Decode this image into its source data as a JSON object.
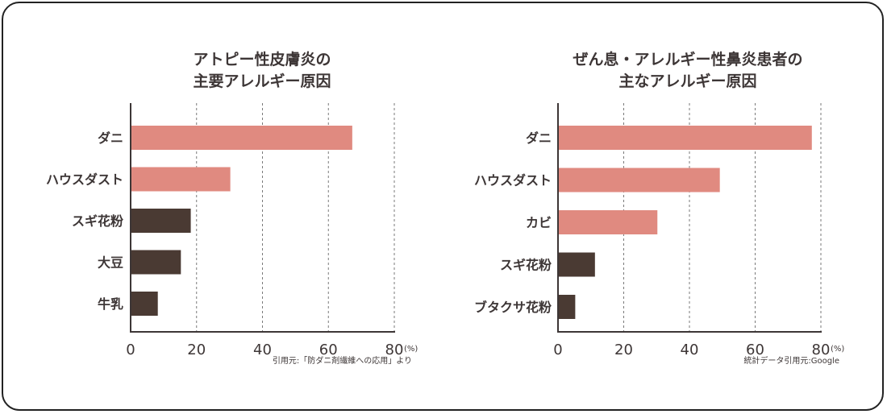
{
  "chart_data": [
    {
      "type": "bar",
      "orientation": "horizontal",
      "title": [
        "アトピー性皮膚炎の",
        "主要アレルギー原因"
      ],
      "categories": [
        "ダニ",
        "ハウスダスト",
        "スギ花粉",
        "大豆",
        "牛乳"
      ],
      "values": [
        67,
        30,
        18,
        15,
        8
      ],
      "bar_colors": [
        "#e08a80",
        "#e08a80",
        "#4a3a33",
        "#4a3a33",
        "#4a3a33"
      ],
      "xlim": [
        0,
        80
      ],
      "xticks": [
        "0",
        "20",
        "40",
        "60",
        "80"
      ],
      "unit": "(%)",
      "grid": "vertical dashed",
      "source": "引用元:「防ダニ剤繊維への応用」より"
    },
    {
      "type": "bar",
      "orientation": "horizontal",
      "title": [
        "ぜん息・アレルギー性鼻炎患者の",
        "主なアレルギー原因"
      ],
      "categories": [
        "ダニ",
        "ハウスダスト",
        "カビ",
        "スギ花粉",
        "ブタクサ花粉"
      ],
      "values": [
        77,
        49,
        30,
        11,
        5
      ],
      "bar_colors": [
        "#e08a80",
        "#e08a80",
        "#e08a80",
        "#4a3a33",
        "#4a3a33"
      ],
      "xlim": [
        0,
        80
      ],
      "xticks": [
        "0",
        "20",
        "40",
        "60",
        "80"
      ],
      "unit": "(%)",
      "grid": "vertical dashed",
      "source": "統計データ引用元:Google"
    }
  ]
}
